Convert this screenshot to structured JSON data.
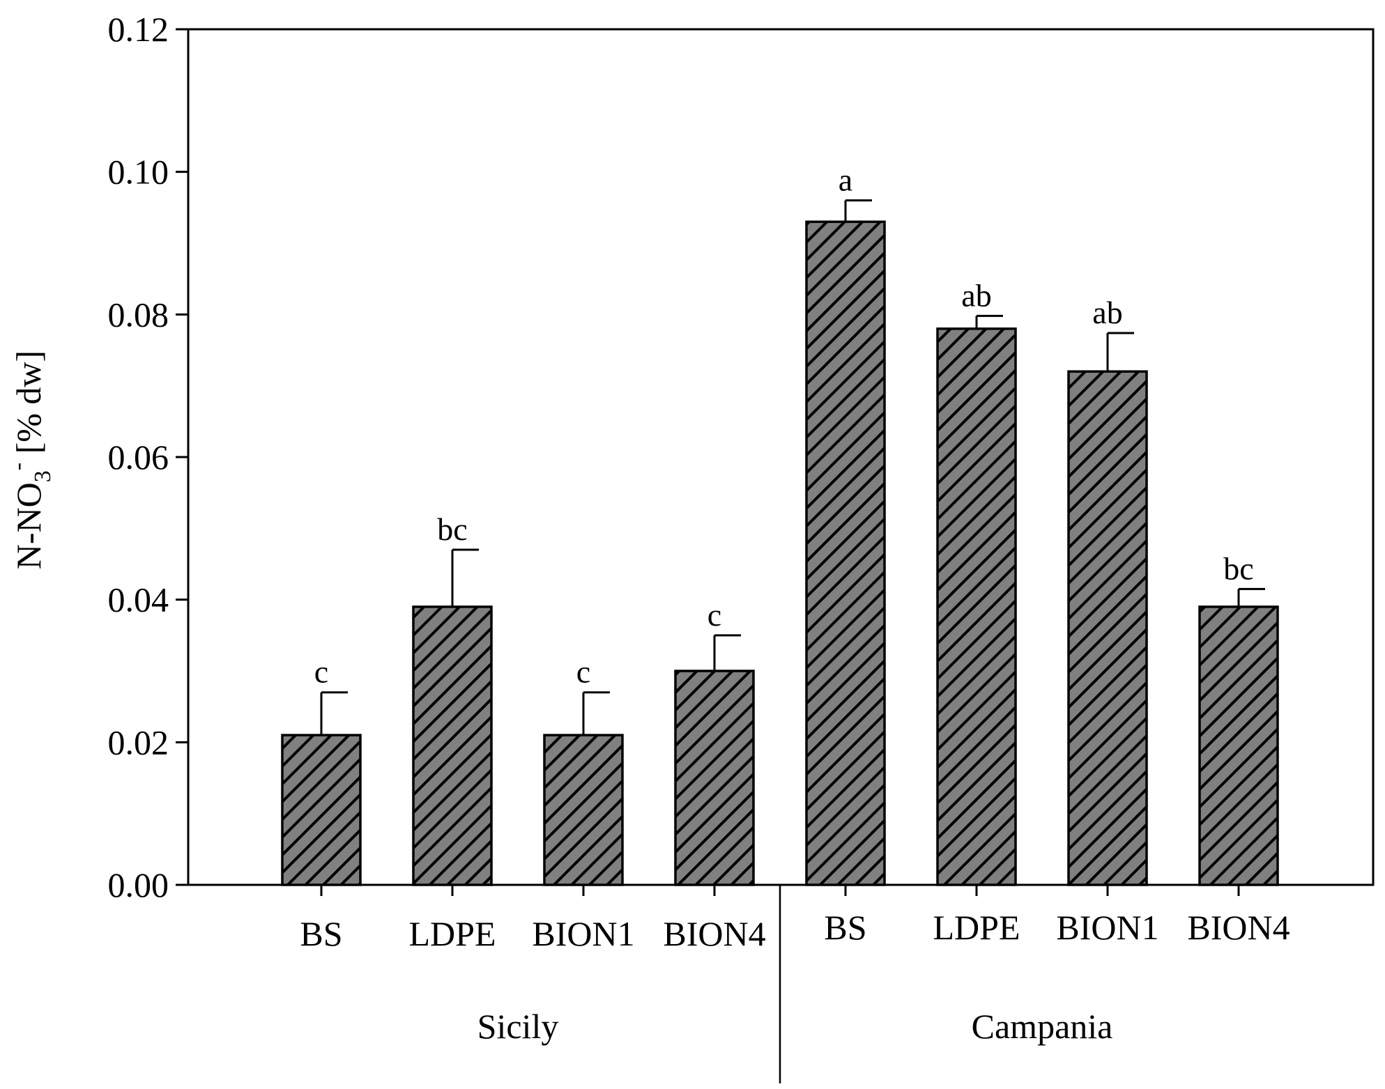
{
  "chart_data": {
    "type": "bar",
    "title": "",
    "xlabel": "",
    "ylabel": {
      "main": "N-NO",
      "subscript": "3",
      "superscript": "-",
      "unit": " [% dw]"
    },
    "ylim": [
      0,
      0.12
    ],
    "yticks": [
      "0.00",
      "0.02",
      "0.04",
      "0.06",
      "0.08",
      "0.10",
      "0.12"
    ],
    "grid": false,
    "groups": [
      {
        "name": "Sicily",
        "bars": [
          {
            "category": "BS",
            "value": 0.021,
            "error": 0.006,
            "letter": "c"
          },
          {
            "category": "LDPE",
            "value": 0.039,
            "error": 0.008,
            "letter": "bc"
          },
          {
            "category": "BION1",
            "value": 0.021,
            "error": 0.006,
            "letter": "c"
          },
          {
            "category": "BION4",
            "value": 0.03,
            "error": 0.005,
            "letter": "c"
          }
        ]
      },
      {
        "name": "Campania",
        "bars": [
          {
            "category": "BS",
            "value": 0.093,
            "error": 0.003,
            "letter": "a"
          },
          {
            "category": "LDPE",
            "value": 0.078,
            "error": 0.0018,
            "letter": "ab"
          },
          {
            "category": "BION1",
            "value": 0.072,
            "error": 0.0054,
            "letter": "ab"
          },
          {
            "category": "BION4",
            "value": 0.039,
            "error": 0.0025,
            "letter": "bc"
          }
        ]
      }
    ],
    "colors": {
      "bar_fill": "#808080",
      "hatch": "#000000",
      "axis": "#000000"
    }
  }
}
